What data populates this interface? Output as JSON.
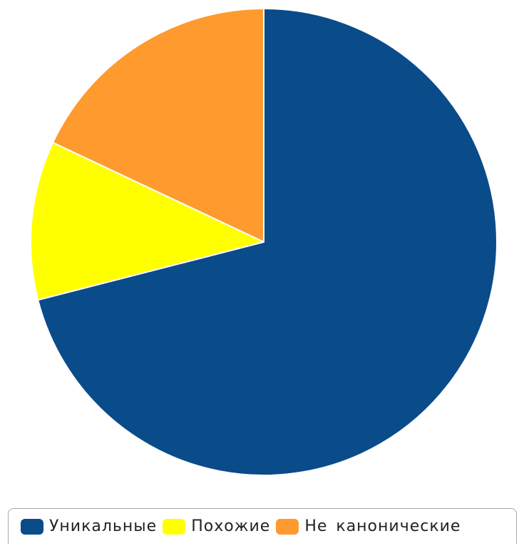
{
  "chart_data": {
    "type": "pie",
    "categories": [
      "Уникальные",
      "Похожие",
      "Не канонические"
    ],
    "values": [
      71.0,
      11.0,
      18.0
    ],
    "colors": [
      "#0a4b8a",
      "#ffff00",
      "#ff9a2e"
    ],
    "start": "12 o'clock",
    "direction": "clockwise",
    "legend": "bottom"
  },
  "legend": {
    "items": [
      {
        "label": "Уникальные",
        "color": "#0a4b8a"
      },
      {
        "label": "Похожие",
        "color": "#ffff00"
      },
      {
        "label": "Не канонические",
        "color": "#ff9a2e"
      }
    ]
  }
}
